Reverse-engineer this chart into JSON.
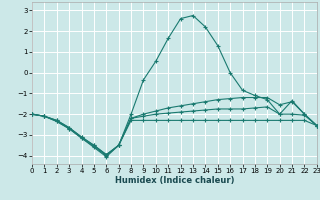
{
  "xlabel": "Humidex (Indice chaleur)",
  "xlim": [
    0,
    23
  ],
  "ylim": [
    -4.4,
    3.4
  ],
  "yticks": [
    -4,
    -3,
    -2,
    -1,
    0,
    1,
    2,
    3
  ],
  "xticks": [
    0,
    1,
    2,
    3,
    4,
    5,
    6,
    7,
    8,
    9,
    10,
    11,
    12,
    13,
    14,
    15,
    16,
    17,
    18,
    19,
    20,
    21,
    22,
    23
  ],
  "background_color": "#cce8e8",
  "grid_color": "#b8d8d8",
  "line_color": "#1a7a70",
  "series": [
    {
      "x": [
        0,
        1,
        2,
        3,
        4,
        5,
        6,
        7,
        8,
        9,
        10,
        11,
        12,
        13,
        14,
        15,
        16,
        17,
        18,
        19,
        20,
        21,
        22,
        23
      ],
      "y": [
        -2.0,
        -2.1,
        -2.3,
        -2.65,
        -3.1,
        -3.5,
        -3.95,
        -3.5,
        -2.3,
        -2.3,
        -2.3,
        -2.3,
        -2.3,
        -2.3,
        -2.3,
        -2.3,
        -2.3,
        -2.3,
        -2.3,
        -2.3,
        -2.3,
        -2.3,
        -2.3,
        -2.55
      ]
    },
    {
      "x": [
        0,
        1,
        2,
        3,
        4,
        5,
        6,
        7,
        8,
        9,
        10,
        11,
        12,
        13,
        14,
        15,
        16,
        17,
        18,
        19,
        20,
        21,
        22,
        23
      ],
      "y": [
        -2.0,
        -2.1,
        -2.3,
        -2.65,
        -3.1,
        -3.5,
        -3.95,
        -3.5,
        -2.2,
        -2.1,
        -2.0,
        -1.95,
        -1.9,
        -1.85,
        -1.8,
        -1.75,
        -1.75,
        -1.75,
        -1.7,
        -1.65,
        -2.0,
        -2.0,
        -2.05,
        -2.55
      ]
    },
    {
      "x": [
        0,
        1,
        2,
        3,
        4,
        5,
        6,
        7,
        8,
        9,
        10,
        11,
        12,
        13,
        14,
        15,
        16,
        17,
        18,
        19,
        20,
        21,
        22,
        23
      ],
      "y": [
        -2.0,
        -2.1,
        -2.35,
        -2.7,
        -3.15,
        -3.55,
        -4.0,
        -3.5,
        -2.2,
        -2.0,
        -1.85,
        -1.7,
        -1.6,
        -1.5,
        -1.4,
        -1.3,
        -1.25,
        -1.2,
        -1.2,
        -1.2,
        -1.55,
        -1.4,
        -2.0,
        -2.55
      ]
    },
    {
      "x": [
        0,
        1,
        2,
        3,
        4,
        5,
        6,
        7,
        8,
        9,
        10,
        11,
        12,
        13,
        14,
        15,
        16,
        17,
        18,
        19,
        20,
        21,
        22,
        23
      ],
      "y": [
        -2.0,
        -2.1,
        -2.35,
        -2.7,
        -3.15,
        -3.6,
        -4.05,
        -3.5,
        -2.0,
        -0.35,
        0.55,
        1.65,
        2.6,
        2.75,
        2.2,
        1.3,
        0.0,
        -0.85,
        -1.1,
        -1.3,
        -2.0,
        -1.35,
        -2.0,
        -2.55
      ]
    }
  ]
}
